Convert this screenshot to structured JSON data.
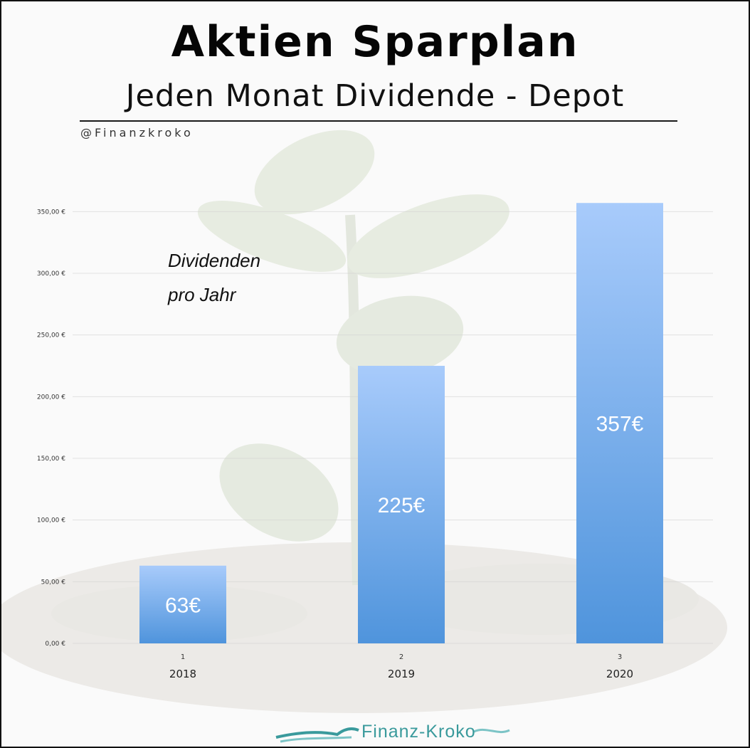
{
  "title": "Aktien Sparplan",
  "subtitle": "Jeden Monat Dividende - Depot",
  "handle": "@Finanzkroko",
  "annotation_line1": "Dividenden",
  "annotation_line2": "pro Jahr",
  "logo_text": "Finanz-Kroko",
  "colors": {
    "bar_top": "#a8cbfb",
    "bar_bottom": "#4f94dc",
    "bar_label": "#ffffff",
    "logo": "#3a9a9c"
  },
  "chart_data": {
    "type": "bar",
    "categories": [
      "2018",
      "2019",
      "2020"
    ],
    "index_labels": [
      "1",
      "2",
      "3"
    ],
    "values": [
      63,
      225,
      357
    ],
    "data_labels": [
      "63€",
      "225€",
      "357€"
    ],
    "y_ticks": [
      0,
      50,
      100,
      150,
      200,
      250,
      300,
      350
    ],
    "y_tick_labels": [
      "0,00 €",
      "50,00 €",
      "100,00 €",
      "150,00 €",
      "200,00 €",
      "250,00 €",
      "300,00 €",
      "350,00 €"
    ],
    "ylim": [
      0,
      370
    ],
    "grid": true
  }
}
